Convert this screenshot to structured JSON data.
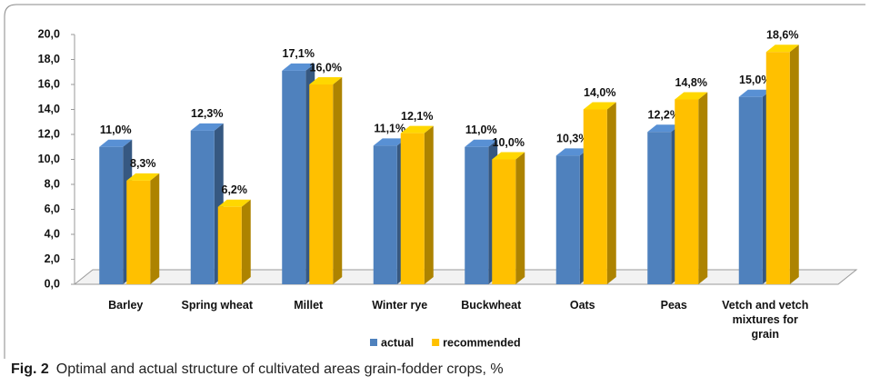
{
  "chart_data": {
    "type": "bar3d",
    "categories": [
      "Barley",
      "Spring wheat",
      "Millet",
      "Winter rye",
      "Buckwheat",
      "Oats",
      "Peas",
      "Vetch and vetch mixtures for grain"
    ],
    "series": [
      {
        "name": "actual",
        "color": "#4f81bd",
        "values": [
          11.0,
          12.3,
          17.1,
          11.1,
          11.0,
          10.3,
          12.2,
          15.0
        ],
        "value_labels": [
          "11,0%",
          "12,3%",
          "17,1%",
          "11,1%",
          "11,0%",
          "10,3%",
          "12,2%",
          "15,0%"
        ]
      },
      {
        "name": "recommended",
        "color": "#ffc000",
        "values": [
          8.3,
          6.2,
          16.0,
          12.1,
          10.0,
          14.0,
          14.8,
          18.6
        ],
        "value_labels": [
          "8,3%",
          "6,2%",
          "16,0%",
          "12,1%",
          "10,0%",
          "14,0%",
          "14,8%",
          "18,6%"
        ]
      }
    ],
    "ylim": [
      0,
      20
    ],
    "yticks": [
      {
        "value": 0,
        "label": "0,0"
      },
      {
        "value": 2,
        "label": "2,0"
      },
      {
        "value": 4,
        "label": "4,0"
      },
      {
        "value": 6,
        "label": "6,0"
      },
      {
        "value": 8,
        "label": "8,0"
      },
      {
        "value": 10,
        "label": "10,0"
      },
      {
        "value": 12,
        "label": "12,0"
      },
      {
        "value": 14,
        "label": "14,0"
      },
      {
        "value": 16,
        "label": "16,0"
      },
      {
        "value": 18,
        "label": "18,0"
      },
      {
        "value": 20,
        "label": "20,0"
      }
    ],
    "legend": "bottom"
  },
  "caption": {
    "label": "Fig. 2",
    "text": "Optimal and actual structure of cultivated areas grain-fodder crops, %"
  }
}
